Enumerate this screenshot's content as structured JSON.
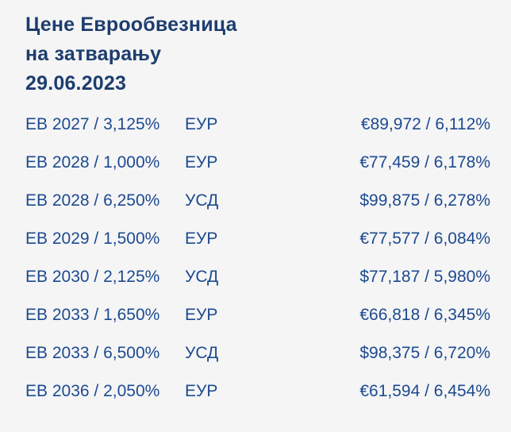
{
  "colors": {
    "background": "#f5f5f6",
    "header_text": "#1d3d6e",
    "row_text": "#1d4a8f"
  },
  "header": {
    "lines": [
      "Цене Еврообвезница",
      "на затварању",
      "29.06.2023"
    ]
  },
  "table": {
    "rows": [
      {
        "bond": "ЕВ 2027 / 3,125%",
        "currency": "ЕУР",
        "value": "€89,972 / 6,112%"
      },
      {
        "bond": "ЕВ 2028 / 1,000%",
        "currency": "ЕУР",
        "value": "€77,459 / 6,178%"
      },
      {
        "bond": "ЕВ 2028 / 6,250%",
        "currency": "УСД",
        "value": "$99,875 / 6,278%"
      },
      {
        "bond": "ЕВ 2029 / 1,500%",
        "currency": "ЕУР",
        "value": "€77,577 / 6,084%"
      },
      {
        "bond": "ЕВ 2030 / 2,125%",
        "currency": "УСД",
        "value": "$77,187 / 5,980%"
      },
      {
        "bond": "ЕВ 2033 / 1,650%",
        "currency": "ЕУР",
        "value": "€66,818 / 6,345%"
      },
      {
        "bond": "ЕВ 2033 / 6,500%",
        "currency": "УСД",
        "value": "$98,375 / 6,720%"
      },
      {
        "bond": "ЕВ 2036 / 2,050%",
        "currency": "ЕУР",
        "value": "€61,594 / 6,454%"
      }
    ]
  }
}
